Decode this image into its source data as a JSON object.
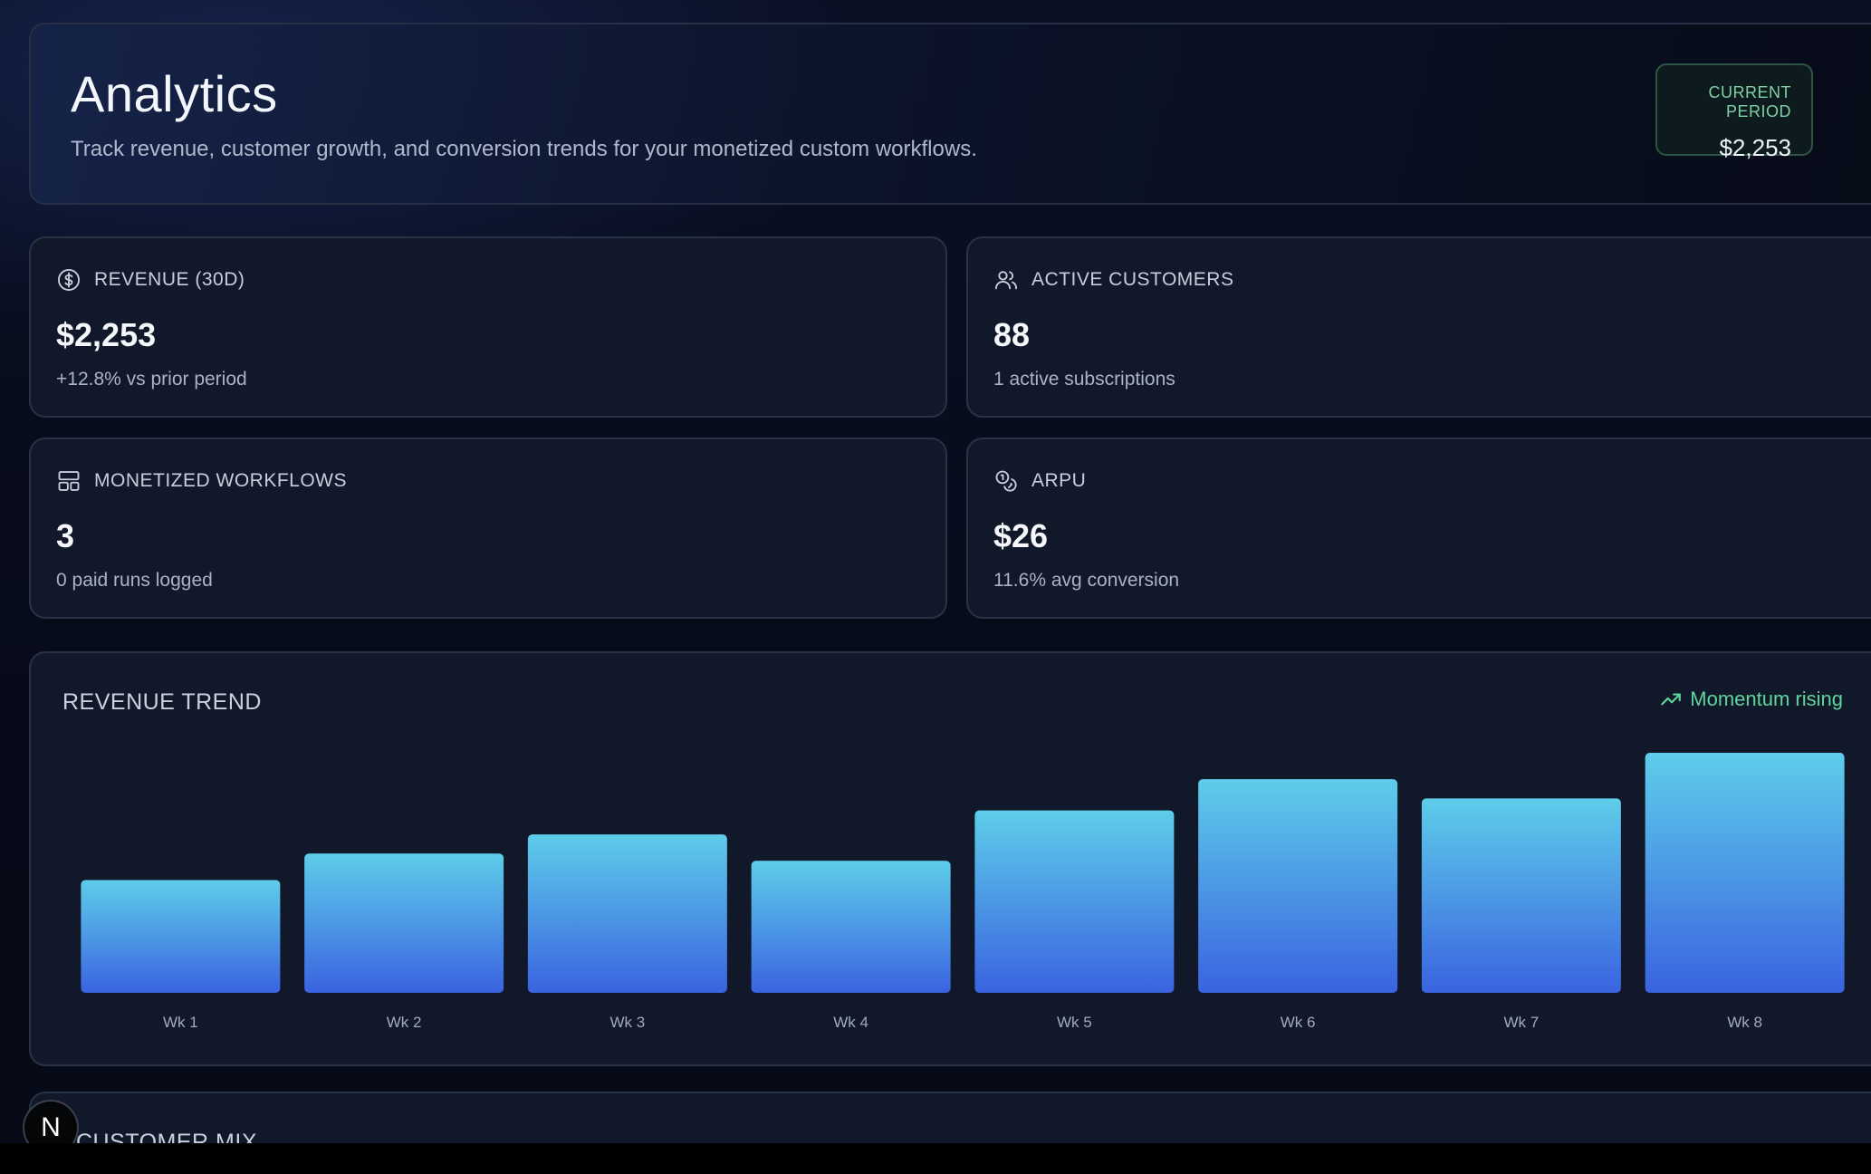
{
  "header": {
    "title": "Analytics",
    "subtitle": "Track revenue, customer growth, and conversion trends for your monetized custom workflows.",
    "current_period": {
      "label": "CURRENT PERIOD",
      "value": "$2,253"
    }
  },
  "stats": [
    {
      "icon": "dollar-circle-icon",
      "label": "REVENUE (30D)",
      "value": "$2,253",
      "sub": "+12.8% vs prior period"
    },
    {
      "icon": "users-icon",
      "label": "ACTIVE CUSTOMERS",
      "value": "88",
      "sub": "1 active subscriptions"
    },
    {
      "icon": "layout-icon",
      "label": "MONETIZED WORKFLOWS",
      "value": "3",
      "sub": "0 paid runs logged"
    },
    {
      "icon": "coins-icon",
      "label": "ARPU",
      "value": "$26",
      "sub": "11.6% avg conversion"
    }
  ],
  "revenue_trend": {
    "title": "REVENUE TREND",
    "badge_icon": "trending-up-icon",
    "badge": "Momentum rising"
  },
  "chart_data": {
    "type": "bar",
    "categories": [
      "Wk 1",
      "Wk 2",
      "Wk 3",
      "Wk 4",
      "Wk 5",
      "Wk 6",
      "Wk 7",
      "Wk 8"
    ],
    "values": [
      47,
      58,
      66,
      55,
      76,
      89,
      81,
      100
    ],
    "ylim": [
      0,
      100
    ],
    "grid": false,
    "colors": {
      "bar_top": "#5ecdea",
      "bar_bottom": "#3a63e0"
    }
  },
  "customer_mix": {
    "title": "CUSTOMER MIX"
  },
  "badge": {
    "letter": "N"
  }
}
